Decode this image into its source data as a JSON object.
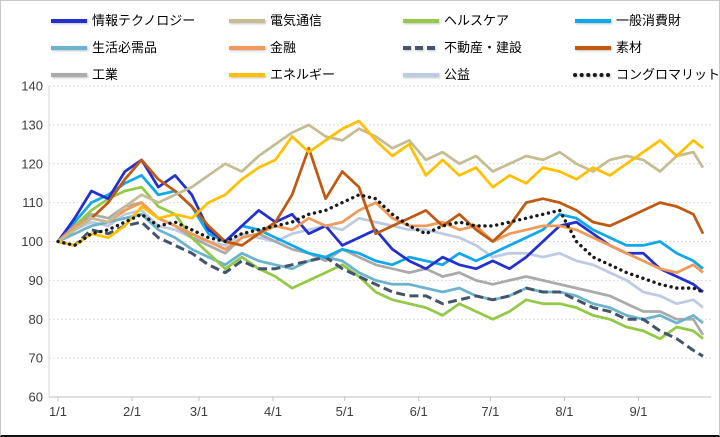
{
  "chart_data": {
    "type": "line",
    "title": "",
    "xlabel": "",
    "ylabel": "",
    "ylim": [
      60,
      140
    ],
    "y_ticks": [
      60,
      70,
      80,
      90,
      100,
      110,
      120,
      130,
      140
    ],
    "grid": "dotted-horizontal",
    "legend_position": "top",
    "x_axis": {
      "tick_labels": [
        "1/1",
        "2/1",
        "3/1",
        "4/1",
        "5/1",
        "6/1",
        "7/1",
        "8/1",
        "9/1"
      ],
      "tick_days": [
        0,
        31,
        59,
        90,
        120,
        151,
        181,
        212,
        243
      ],
      "day_max": 270
    },
    "day_grid": [
      0,
      7,
      14,
      21,
      28,
      35,
      42,
      49,
      56,
      63,
      70,
      77,
      84,
      91,
      98,
      105,
      112,
      119,
      126,
      133,
      140,
      147,
      154,
      161,
      168,
      175,
      182,
      189,
      196,
      203,
      210,
      217,
      224,
      231,
      238,
      245,
      252,
      259,
      266,
      270
    ],
    "series": [
      {
        "name": "情報テクノロジー",
        "color": "#2230CE",
        "style": "solid",
        "values": [
          100,
          106,
          113,
          111,
          118,
          121,
          114,
          117,
          112,
          103,
          100,
          104,
          108,
          105,
          107,
          102,
          104,
          99,
          101,
          103,
          98,
          95,
          93,
          96,
          94,
          93,
          95,
          93,
          96,
          100,
          104,
          105,
          102,
          99,
          97,
          97,
          93,
          91,
          89,
          87
        ]
      },
      {
        "name": "電気通信",
        "color": "#C6BC93",
        "style": "solid",
        "values": [
          100,
          103,
          106,
          105,
          109,
          112,
          110,
          112,
          114,
          117,
          120,
          118,
          122,
          125,
          128,
          130,
          127,
          126,
          129,
          127,
          124,
          126,
          121,
          123,
          120,
          122,
          118,
          120,
          122,
          121,
          123,
          120,
          118,
          121,
          122,
          121,
          118,
          122,
          123,
          119
        ]
      },
      {
        "name": "ヘルスケア",
        "color": "#93C947",
        "style": "solid",
        "values": [
          100,
          104,
          108,
          111,
          113,
          114,
          109,
          107,
          101,
          97,
          93,
          96,
          93,
          91,
          88,
          90,
          92,
          94,
          91,
          87,
          85,
          84,
          83,
          81,
          84,
          82,
          80,
          82,
          85,
          84,
          84,
          83,
          81,
          80,
          78,
          77,
          75,
          78,
          77,
          75
        ]
      },
      {
        "name": "一般消費財",
        "color": "#0FA8E8",
        "style": "solid",
        "values": [
          100,
          105,
          110,
          112,
          115,
          117,
          112,
          113,
          109,
          102,
          100,
          104,
          103,
          101,
          99,
          97,
          96,
          98,
          97,
          95,
          94,
          96,
          95,
          94,
          97,
          95,
          97,
          99,
          101,
          103,
          107,
          106,
          103,
          101,
          99,
          99,
          100,
          97,
          95,
          93
        ]
      },
      {
        "name": "生活必需品",
        "color": "#6CB3CD",
        "style": "solid",
        "values": [
          100,
          102,
          104,
          105,
          106,
          107,
          103,
          101,
          98,
          96,
          94,
          97,
          95,
          94,
          93,
          95,
          96,
          95,
          92,
          90,
          89,
          89,
          88,
          87,
          88,
          86,
          85,
          86,
          88,
          87,
          87,
          86,
          84,
          83,
          81,
          80,
          81,
          79,
          81,
          79
        ]
      },
      {
        "name": "金融",
        "color": "#EF9A58",
        "style": "solid",
        "values": [
          100,
          104,
          106,
          105,
          108,
          110,
          106,
          104,
          102,
          100,
          98,
          101,
          102,
          104,
          103,
          106,
          104,
          105,
          108,
          110,
          106,
          104,
          104,
          105,
          103,
          104,
          100,
          102,
          103,
          104,
          104,
          103,
          101,
          99,
          97,
          95,
          93,
          92,
          94,
          92
        ]
      },
      {
        "name": "不動産・建設",
        "color": "#44546A",
        "style": "dashed",
        "values": [
          100,
          99,
          103,
          102,
          104,
          105,
          101,
          99,
          97,
          94,
          92,
          95,
          93,
          93,
          94,
          95,
          96,
          93,
          91,
          89,
          87,
          86,
          86,
          84,
          85,
          86,
          85,
          86,
          88,
          87,
          87,
          85,
          83,
          82,
          80,
          80,
          77,
          75,
          72,
          70.5
        ]
      },
      {
        "name": "素材",
        "color": "#C05A11",
        "style": "solid",
        "values": [
          100,
          103,
          106,
          110,
          116,
          121,
          116,
          113,
          109,
          104,
          100,
          99,
          102,
          105,
          112,
          124,
          111,
          118,
          114,
          102,
          104,
          106,
          108,
          104,
          107,
          103,
          100,
          104,
          110,
          111,
          110,
          108,
          105,
          104,
          106,
          108,
          110,
          109,
          107,
          102
        ]
      },
      {
        "name": "工業",
        "color": "#AAAAAA",
        "style": "solid",
        "values": [
          100,
          104,
          107,
          106,
          109,
          110,
          106,
          104,
          101,
          99,
          97,
          101,
          102,
          100,
          98,
          97,
          95,
          98,
          96,
          94,
          93,
          92,
          93,
          91,
          92,
          90,
          89,
          90,
          91,
          90,
          89,
          88,
          87,
          86,
          84,
          82,
          82,
          80,
          80,
          76
        ]
      },
      {
        "name": "エネルギー",
        "color": "#FFC000",
        "style": "solid",
        "values": [
          100,
          99,
          102,
          101,
          104,
          109,
          106,
          107,
          106,
          110,
          112,
          116,
          119,
          121,
          127,
          123,
          126,
          129,
          131,
          126,
          122,
          125,
          117,
          121,
          117,
          119,
          114,
          117,
          115,
          119,
          118,
          116,
          119,
          117,
          120,
          123,
          126,
          122,
          126,
          124
        ]
      },
      {
        "name": "公益",
        "color": "#BCCBE2",
        "style": "solid",
        "values": [
          100,
          103,
          105,
          104,
          107,
          108,
          104,
          103,
          101,
          100,
          99,
          102,
          101,
          100,
          102,
          103,
          104,
          103,
          106,
          105,
          104,
          103,
          103,
          102,
          101,
          99,
          96,
          97,
          97,
          96,
          97,
          95,
          94,
          92,
          90,
          87,
          86,
          84,
          85,
          83
        ]
      },
      {
        "name": "コングロマリット",
        "color": "#1A1A1A",
        "style": "dotted",
        "values": [
          100,
          99,
          102,
          103,
          105,
          107,
          104,
          105,
          103,
          101,
          100,
          102,
          103,
          104,
          105,
          107,
          108,
          110,
          112,
          111,
          107,
          104,
          102,
          104,
          105,
          104,
          104,
          105,
          106,
          107,
          108,
          100,
          96,
          94,
          92,
          90.5,
          89,
          88,
          88,
          87
        ]
      }
    ]
  }
}
